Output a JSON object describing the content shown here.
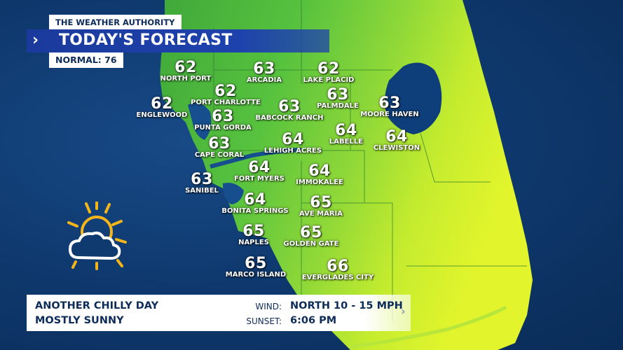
{
  "brand": "THE WEATHER AUTHORITY",
  "title": "TODAY'S FORECAST",
  "title_chevron": "›",
  "normal": "NORMAL: 76",
  "cities": [
    {
      "name": "NORTH PORT",
      "temp": "62"
    },
    {
      "name": "ARCADIA",
      "temp": "63"
    },
    {
      "name": "LAKE PLACID",
      "temp": "62"
    },
    {
      "name": "PORT CHARLOTTE",
      "temp": "62"
    },
    {
      "name": "ENGLEWOOD",
      "temp": "62"
    },
    {
      "name": "PALMDALE",
      "temp": "63"
    },
    {
      "name": "MOORE HAVEN",
      "temp": "63"
    },
    {
      "name": "BABCOCK RANCH",
      "temp": "63"
    },
    {
      "name": "PUNTA GORDA",
      "temp": "63"
    },
    {
      "name": "LABELLE",
      "temp": "64"
    },
    {
      "name": "CLEWISTON",
      "temp": "64"
    },
    {
      "name": "LEHIGH ACRES",
      "temp": "64"
    },
    {
      "name": "CAPE CORAL",
      "temp": "63"
    },
    {
      "name": "FORT MYERS",
      "temp": "64"
    },
    {
      "name": "IMMOKALEE",
      "temp": "64"
    },
    {
      "name": "SANIBEL",
      "temp": "63"
    },
    {
      "name": "BONITA SPRINGS",
      "temp": "64"
    },
    {
      "name": "AVE MARIA",
      "temp": "65"
    },
    {
      "name": "NAPLES",
      "temp": "65"
    },
    {
      "name": "GOLDEN GATE",
      "temp": "65"
    },
    {
      "name": "MARCO ISLAND",
      "temp": "65"
    },
    {
      "name": "EVERGLADES CITY",
      "temp": "66"
    }
  ],
  "conditions": {
    "line1": "ANOTHER CHILLY DAY",
    "line2": "MOSTLY SUNNY"
  },
  "wind": {
    "label": "WIND:",
    "value": "NORTH  10 - 15 MPH"
  },
  "sunset": {
    "label": "SUNSET:",
    "value": "6:06 PM"
  },
  "bar_chevron": "›",
  "icon": "partly-sunny-icon",
  "colors": {
    "ocean": "#0f3a70",
    "land_green": "#4fbf3a",
    "land_yellow": "#d8ef2a",
    "lake": "#0e3f7a",
    "title_bar": "#1e42ad",
    "text_navy": "#0d2c5a"
  }
}
